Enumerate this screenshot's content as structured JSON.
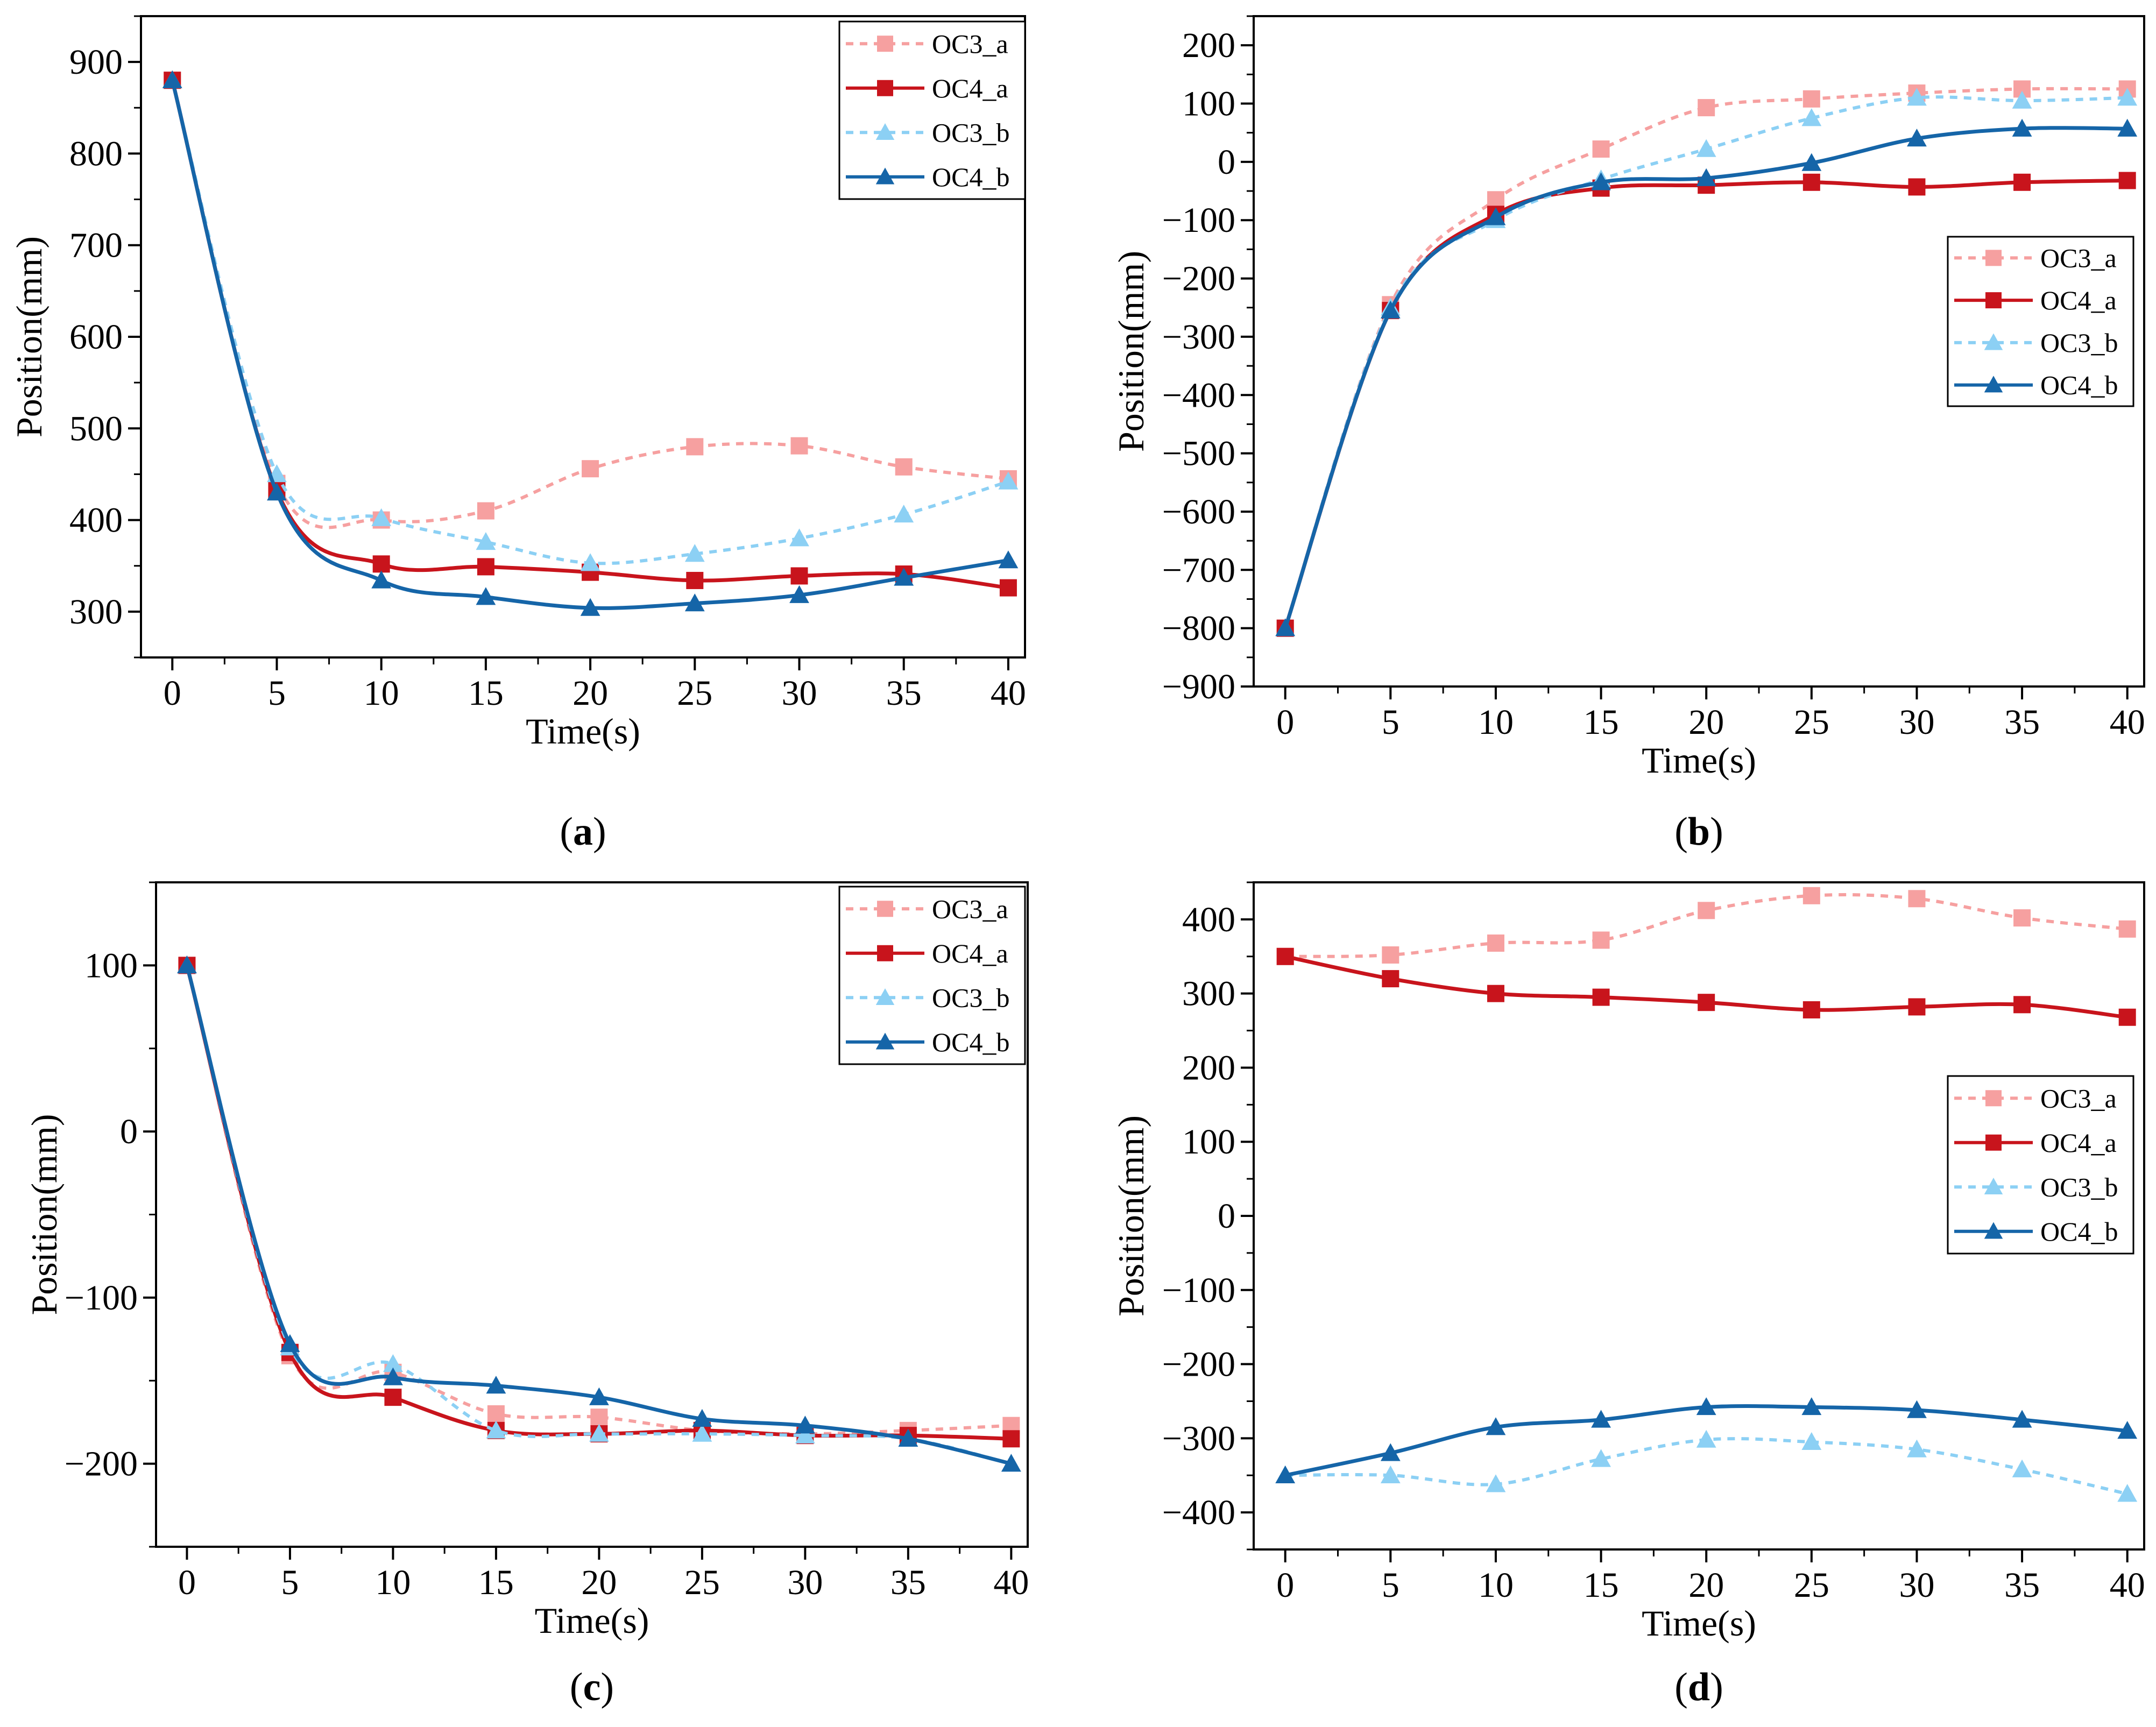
{
  "figure": {
    "panel_labels": [
      "(a)",
      "(b)",
      "(c)",
      "(d)"
    ]
  },
  "colors": {
    "OC3_a": "#f6a0a0",
    "OC4_a": "#c8141c",
    "OC3_b": "#8cd0f4",
    "OC4_b": "#1565a8"
  },
  "chart_data": [
    {
      "type": "line",
      "panel": "(a)",
      "xlabel": "Time(s)",
      "ylabel": "Position(mm)",
      "xlim": [
        -1.5,
        40.8
      ],
      "ylim": [
        250,
        950
      ],
      "xticks": [
        0,
        5,
        10,
        15,
        20,
        25,
        30,
        35,
        40
      ],
      "yticks": [
        300,
        400,
        500,
        600,
        700,
        800,
        900
      ],
      "grid": false,
      "legend_position": "top-right",
      "x": [
        0,
        5,
        10,
        15,
        20,
        25,
        30,
        35,
        40
      ],
      "series": [
        {
          "name": "OC3_a",
          "style": "dashed",
          "marker": "square",
          "values": [
            880,
            440,
            400,
            410,
            456,
            480,
            481,
            458,
            445
          ]
        },
        {
          "name": "OC4_a",
          "style": "solid",
          "marker": "square",
          "values": [
            880,
            432,
            352,
            349,
            343,
            334,
            339,
            341,
            326
          ]
        },
        {
          "name": "OC3_b",
          "style": "dashed",
          "marker": "triangle",
          "values": [
            880,
            450,
            402,
            376,
            353,
            363,
            380,
            406,
            442
          ]
        },
        {
          "name": "OC4_b",
          "style": "solid",
          "marker": "triangle",
          "values": [
            880,
            430,
            334,
            316,
            304,
            309,
            318,
            337,
            356
          ]
        }
      ]
    },
    {
      "type": "line",
      "panel": "(b)",
      "xlabel": "Time(s)",
      "ylabel": "Position(mm)",
      "xlim": [
        -1.5,
        40.8
      ],
      "ylim": [
        -900,
        250
      ],
      "xticks": [
        0,
        5,
        10,
        15,
        20,
        25,
        30,
        35,
        40
      ],
      "yticks": [
        -900,
        -800,
        -700,
        -600,
        -500,
        -400,
        -300,
        -200,
        -100,
        0,
        100,
        200
      ],
      "grid": false,
      "legend_position": "middle-right",
      "x": [
        0,
        5,
        10,
        15,
        20,
        25,
        30,
        35,
        40
      ],
      "series": [
        {
          "name": "OC3_a",
          "style": "dashed",
          "marker": "square",
          "values": [
            -800,
            -245,
            -65,
            22,
            93,
            108,
            118,
            125,
            125
          ]
        },
        {
          "name": "OC4_a",
          "style": "solid",
          "marker": "square",
          "values": [
            -800,
            -255,
            -90,
            -45,
            -40,
            -35,
            -43,
            -35,
            -32
          ]
        },
        {
          "name": "OC3_b",
          "style": "dashed",
          "marker": "triangle",
          "values": [
            -800,
            -250,
            -100,
            -30,
            22,
            75,
            110,
            105,
            110
          ]
        },
        {
          "name": "OC4_b",
          "style": "solid",
          "marker": "triangle",
          "values": [
            -800,
            -255,
            -95,
            -35,
            -28,
            -2,
            40,
            57,
            57
          ]
        }
      ]
    },
    {
      "type": "line",
      "panel": "(c)",
      "xlabel": "Time(s)",
      "ylabel": "Position(mm)",
      "xlim": [
        -1.5,
        40.8
      ],
      "ylim": [
        -250,
        150
      ],
      "xticks": [
        0,
        5,
        10,
        15,
        20,
        25,
        30,
        35,
        40
      ],
      "yticks": [
        -200,
        -100,
        0,
        100
      ],
      "grid": false,
      "legend_position": "top-right",
      "x": [
        0,
        5,
        10,
        15,
        20,
        25,
        30,
        35,
        40
      ],
      "series": [
        {
          "name": "OC3_a",
          "style": "dashed",
          "marker": "square",
          "values": [
            100,
            -135,
            -145,
            -170,
            -172,
            -180,
            -182,
            -180,
            -177
          ]
        },
        {
          "name": "OC4_a",
          "style": "solid",
          "marker": "square",
          "values": [
            100,
            -133,
            -160,
            -180,
            -182,
            -180,
            -183,
            -183,
            -185
          ]
        },
        {
          "name": "OC3_b",
          "style": "dashed",
          "marker": "triangle",
          "values": [
            100,
            -130,
            -140,
            -180,
            -182,
            -182,
            -183,
            -185,
            -200
          ]
        },
        {
          "name": "OC4_b",
          "style": "solid",
          "marker": "triangle",
          "values": [
            100,
            -128,
            -148,
            -153,
            -160,
            -173,
            -177,
            -185,
            -200
          ]
        }
      ]
    },
    {
      "type": "line",
      "panel": "(d)",
      "xlabel": "Time(s)",
      "ylabel": "Position(mm)",
      "xlim": [
        -1.5,
        40.8
      ],
      "ylim": [
        -450,
        450
      ],
      "xticks": [
        0,
        5,
        10,
        15,
        20,
        25,
        30,
        35,
        40
      ],
      "yticks": [
        -400,
        -300,
        -200,
        -100,
        0,
        100,
        200,
        300,
        400
      ],
      "grid": false,
      "legend_position": "middle-right",
      "x": [
        0,
        5,
        10,
        15,
        20,
        25,
        30,
        35,
        40
      ],
      "series": [
        {
          "name": "OC3_a",
          "style": "dashed",
          "marker": "square",
          "values": [
            350,
            352,
            368,
            372,
            412,
            432,
            428,
            402,
            387
          ]
        },
        {
          "name": "OC4_a",
          "style": "solid",
          "marker": "square",
          "values": [
            350,
            320,
            300,
            295,
            288,
            278,
            282,
            285,
            268
          ]
        },
        {
          "name": "OC3_b",
          "style": "dashed",
          "marker": "triangle",
          "values": [
            -350,
            -350,
            -362,
            -328,
            -302,
            -305,
            -315,
            -342,
            -375
          ]
        },
        {
          "name": "OC4_b",
          "style": "solid",
          "marker": "triangle",
          "values": [
            -350,
            -320,
            -285,
            -275,
            -258,
            -258,
            -262,
            -275,
            -290
          ]
        }
      ]
    }
  ]
}
